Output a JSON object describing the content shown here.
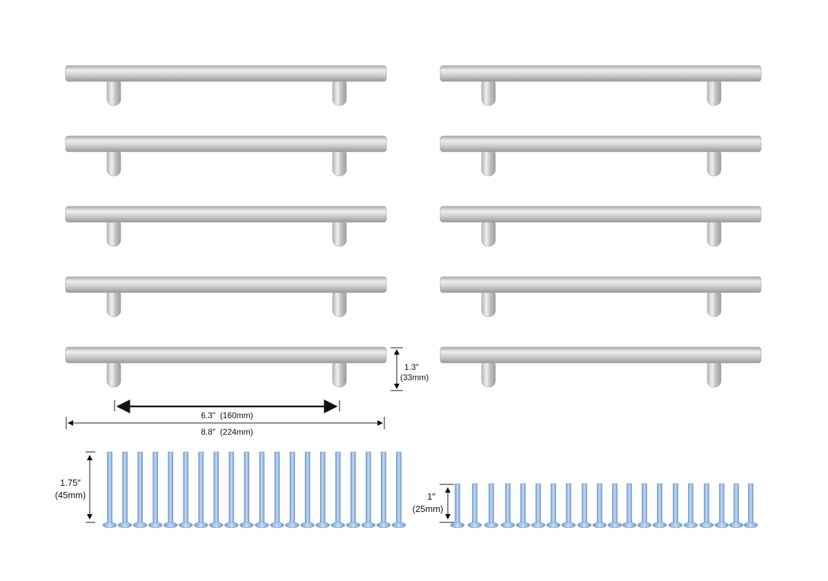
{
  "product": {
    "handle_count": 10,
    "long_screw_count": 20,
    "short_screw_count": 20,
    "colors": {
      "handle": "#c9c9c9",
      "screw": "#8fb4de",
      "line": "#111111"
    }
  },
  "dimensions": {
    "height_in": "1.3″",
    "height_mm": "(33mm)",
    "hole_spacing": "6.3″  (160mm)",
    "total_length": "8.8″  (224mm)",
    "long_screw_in": "1.75″",
    "long_screw_mm": "(45mm)",
    "short_screw_in": "1″",
    "short_screw_mm": "(25mm)"
  }
}
